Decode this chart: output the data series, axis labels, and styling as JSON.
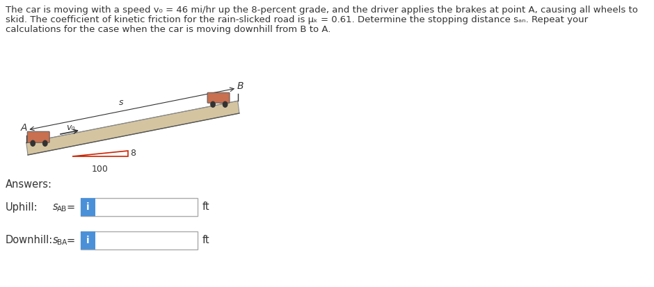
{
  "bg_color": "#ffffff",
  "font_color": "#333333",
  "arrow_color": "#333333",
  "text_fontsize": 10.5,
  "title_lines": [
    "The car is moving with a speed v₀ = 46 mi/hr up the 8-percent grade, and the driver applies the brakes at point A, causing all wheels to",
    "skid. The coefficient of kinetic friction for the rain-slicked road is μₖ = 0.61. Determine the stopping distance sₐₙ. Repeat your",
    "calculations for the case when the car is moving downhill from B to A."
  ],
  "diagram": {
    "road_color": "#d4c5a0",
    "road_edge_color": "#888888",
    "red_line_color": "#cc2200",
    "slope_label": "8",
    "base_label": "100",
    "point_A": "A",
    "point_B": "B",
    "s_label": "s",
    "v0_label": "v₀",
    "car_color": "#c87050"
  },
  "answers": {
    "label": "Answers:",
    "uphill_label": "Uphill:",
    "uphill_var_main": "s",
    "uphill_var_sub": "AB",
    "downhill_label": "Downhill:",
    "downhill_var_main": "s",
    "downhill_var_sub": "BA",
    "unit": "ft",
    "box_bg": "#ffffff",
    "box_border": "#aaaaaa",
    "icon_bg": "#4a90d9",
    "icon_text": "i",
    "icon_text_color": "#ffffff"
  }
}
